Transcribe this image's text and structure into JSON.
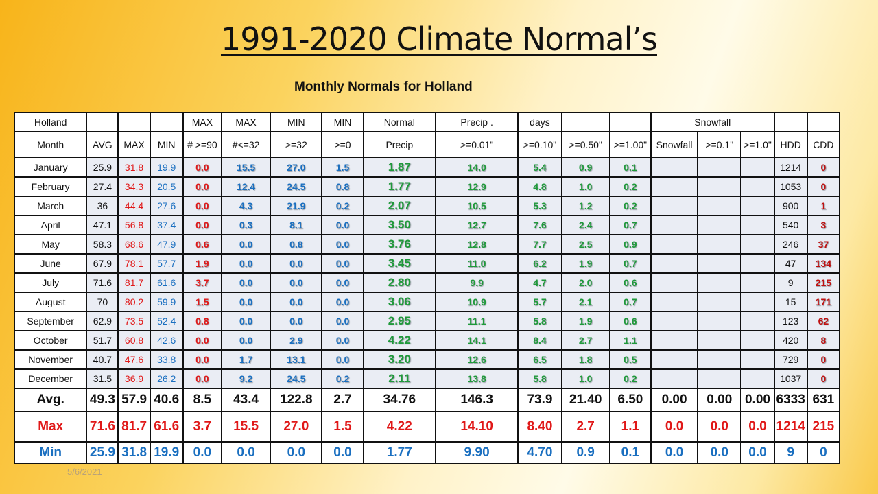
{
  "title": "1991-2020 Climate Normal’s",
  "subtitle": "Monthly Normals for Holland",
  "date": "5/6/2021",
  "header1": [
    "Holland",
    "",
    "",
    "",
    "MAX",
    "MAX",
    "MIN",
    "MIN",
    "Normal",
    "Precip .",
    "days",
    "",
    "",
    "Snowfall",
    "",
    ""
  ],
  "header2": [
    "Month",
    "AVG",
    "MAX",
    "MIN",
    "# >=90",
    "#<=32",
    ">=32",
    ">=0",
    "Precip",
    ">=0.01\"",
    ">=0.10\"",
    ">=0.50\"",
    ">=1.00\"",
    "Snowfall",
    ">=0.1\"",
    ">=1.0\"",
    "HDD",
    "CDD"
  ],
  "rows": [
    {
      "month": "January",
      "avg": "25.9",
      "max": "31.8",
      "min": "19.9",
      "g90": "0.0",
      "l32": "15.5",
      "n32": "27.0",
      "n0": "1.5",
      "precip": "1.87",
      "p01": "14.0",
      "p10": "5.4",
      "p50": "0.9",
      "p100": "0.1",
      "snow": "",
      "s01": "",
      "s10": "",
      "hdd": "1214",
      "cdd": "0"
    },
    {
      "month": "February",
      "avg": "27.4",
      "max": "34.3",
      "min": "20.5",
      "g90": "0.0",
      "l32": "12.4",
      "n32": "24.5",
      "n0": "0.8",
      "precip": "1.77",
      "p01": "12.9",
      "p10": "4.8",
      "p50": "1.0",
      "p100": "0.2",
      "snow": "",
      "s01": "",
      "s10": "",
      "hdd": "1053",
      "cdd": "0"
    },
    {
      "month": "March",
      "avg": "36",
      "max": "44.4",
      "min": "27.6",
      "g90": "0.0",
      "l32": "4.3",
      "n32": "21.9",
      "n0": "0.2",
      "precip": "2.07",
      "p01": "10.5",
      "p10": "5.3",
      "p50": "1.2",
      "p100": "0.2",
      "snow": "",
      "s01": "",
      "s10": "",
      "hdd": "900",
      "cdd": "1"
    },
    {
      "month": "April",
      "avg": "47.1",
      "max": "56.8",
      "min": "37.4",
      "g90": "0.0",
      "l32": "0.3",
      "n32": "8.1",
      "n0": "0.0",
      "precip": "3.50",
      "p01": "12.7",
      "p10": "7.6",
      "p50": "2.4",
      "p100": "0.7",
      "snow": "",
      "s01": "",
      "s10": "",
      "hdd": "540",
      "cdd": "3"
    },
    {
      "month": "May",
      "avg": "58.3",
      "max": "68.6",
      "min": "47.9",
      "g90": "0.6",
      "l32": "0.0",
      "n32": "0.8",
      "n0": "0.0",
      "precip": "3.76",
      "p01": "12.8",
      "p10": "7.7",
      "p50": "2.5",
      "p100": "0.9",
      "snow": "",
      "s01": "",
      "s10": "",
      "hdd": "246",
      "cdd": "37"
    },
    {
      "month": "June",
      "avg": "67.9",
      "max": "78.1",
      "min": "57.7",
      "g90": "1.9",
      "l32": "0.0",
      "n32": "0.0",
      "n0": "0.0",
      "precip": "3.45",
      "p01": "11.0",
      "p10": "6.2",
      "p50": "1.9",
      "p100": "0.7",
      "snow": "",
      "s01": "",
      "s10": "",
      "hdd": "47",
      "cdd": "134"
    },
    {
      "month": "July",
      "avg": "71.6",
      "max": "81.7",
      "min": "61.6",
      "g90": "3.7",
      "l32": "0.0",
      "n32": "0.0",
      "n0": "0.0",
      "precip": "2.80",
      "p01": "9.9",
      "p10": "4.7",
      "p50": "2.0",
      "p100": "0.6",
      "snow": "",
      "s01": "",
      "s10": "",
      "hdd": "9",
      "cdd": "215"
    },
    {
      "month": "August",
      "avg": "70",
      "max": "80.2",
      "min": "59.9",
      "g90": "1.5",
      "l32": "0.0",
      "n32": "0.0",
      "n0": "0.0",
      "precip": "3.06",
      "p01": "10.9",
      "p10": "5.7",
      "p50": "2.1",
      "p100": "0.7",
      "snow": "",
      "s01": "",
      "s10": "",
      "hdd": "15",
      "cdd": "171"
    },
    {
      "month": "September",
      "avg": "62.9",
      "max": "73.5",
      "min": "52.4",
      "g90": "0.8",
      "l32": "0.0",
      "n32": "0.0",
      "n0": "0.0",
      "precip": "2.95",
      "p01": "11.1",
      "p10": "5.8",
      "p50": "1.9",
      "p100": "0.6",
      "snow": "",
      "s01": "",
      "s10": "",
      "hdd": "123",
      "cdd": "62"
    },
    {
      "month": "October",
      "avg": "51.7",
      "max": "60.8",
      "min": "42.6",
      "g90": "0.0",
      "l32": "0.0",
      "n32": "2.9",
      "n0": "0.0",
      "precip": "4.22",
      "p01": "14.1",
      "p10": "8.4",
      "p50": "2.7",
      "p100": "1.1",
      "snow": "",
      "s01": "",
      "s10": "",
      "hdd": "420",
      "cdd": "8"
    },
    {
      "month": "November",
      "avg": "40.7",
      "max": "47.6",
      "min": "33.8",
      "g90": "0.0",
      "l32": "1.7",
      "n32": "13.1",
      "n0": "0.0",
      "precip": "3.20",
      "p01": "12.6",
      "p10": "6.5",
      "p50": "1.8",
      "p100": "0.5",
      "snow": "",
      "s01": "",
      "s10": "",
      "hdd": "729",
      "cdd": "0"
    },
    {
      "month": "December",
      "avg": "31.5",
      "max": "36.9",
      "min": "26.2",
      "g90": "0.0",
      "l32": "9.2",
      "n32": "24.5",
      "n0": "0.2",
      "precip": "2.11",
      "p01": "13.8",
      "p10": "5.8",
      "p50": "1.0",
      "p100": "0.2",
      "snow": "",
      "s01": "",
      "s10": "",
      "hdd": "1037",
      "cdd": "0"
    }
  ],
  "avg_row": [
    "Avg.",
    "49.3",
    "57.9",
    "40.6",
    "8.5",
    "43.4",
    "122.8",
    "2.7",
    "34.76",
    "146.3",
    "73.9",
    "21.40",
    "6.50",
    "0.00",
    "0.00",
    "0.00",
    "6333",
    "631"
  ],
  "max_row": [
    "Max",
    "71.6",
    "81.7",
    "61.6",
    "3.7",
    "15.5",
    "27.0",
    "1.5",
    "4.22",
    "14.10",
    "8.40",
    "2.7",
    "1.1",
    "0.0",
    "0.0",
    "0.0",
    "1214",
    "215"
  ],
  "min_row": [
    "Min",
    "25.9",
    "31.8",
    "19.9",
    "0.0",
    "0.0",
    "0.0",
    "0.0",
    "1.77",
    "9.90",
    "4.70",
    "0.9",
    "0.1",
    "0.0",
    "0.0",
    "0.0",
    "9",
    "0"
  ],
  "colors": {
    "max": "#e01818",
    "min": "#1a6fc0",
    "precip": "#1f9a3a",
    "cdd": "#c01010"
  }
}
